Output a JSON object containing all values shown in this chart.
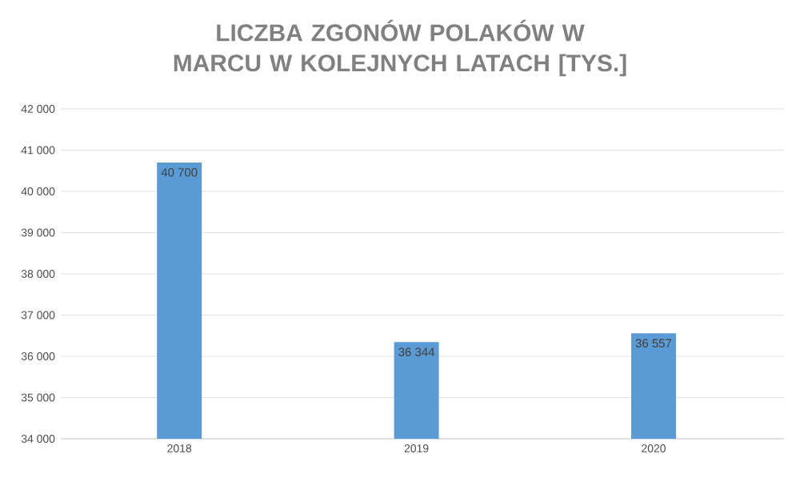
{
  "chart_data": {
    "type": "bar",
    "title": "LICZBA ZGONÓW POLAKÓW W MARCU W KOLEJNYCH LATACH [TYS.]",
    "categories": [
      "2018",
      "2019",
      "2020"
    ],
    "values": [
      40700,
      36344,
      36557
    ],
    "value_labels": [
      "40 700",
      "36 344",
      "36 557"
    ],
    "color": "#5b9bd5",
    "ylim": [
      34000,
      42000
    ],
    "yticks": [
      {
        "value": 34000,
        "label": "34 000"
      },
      {
        "value": 35000,
        "label": "35 000"
      },
      {
        "value": 36000,
        "label": "36 000"
      },
      {
        "value": 37000,
        "label": "37 000"
      },
      {
        "value": 38000,
        "label": "38 000"
      },
      {
        "value": 39000,
        "label": "39 000"
      },
      {
        "value": 40000,
        "label": "40 000"
      },
      {
        "value": 41000,
        "label": "41 000"
      },
      {
        "value": 42000,
        "label": "42 000"
      }
    ],
    "grid": "y"
  }
}
